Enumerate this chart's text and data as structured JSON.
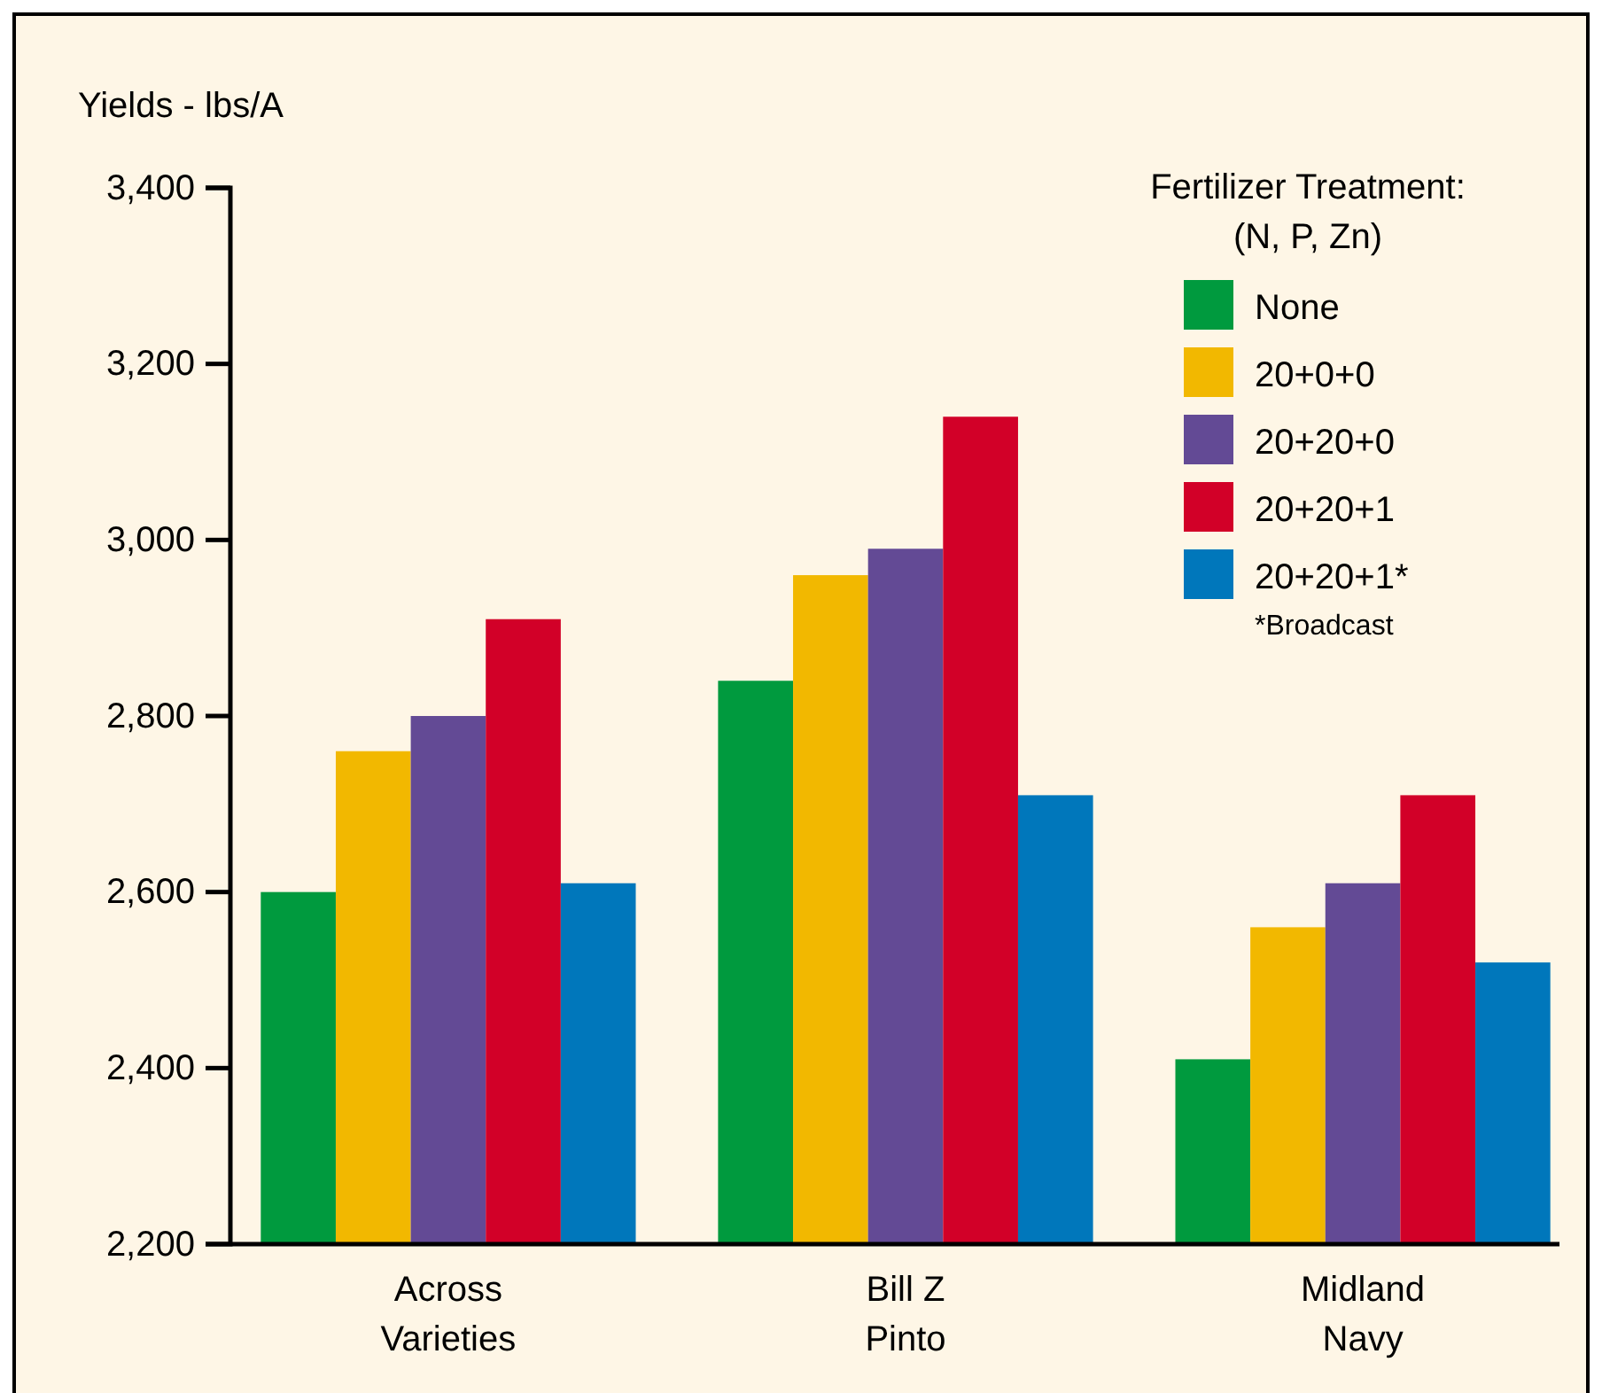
{
  "chart_data": {
    "type": "bar",
    "ylabel": "Yields - lbs/A",
    "legend_title": "Fertilizer Treatment:\n(N, P, Zn)",
    "categories": [
      "Across\nVarieties",
      "Bill Z\nPinto",
      "Midland\nNavy"
    ],
    "series": [
      {
        "name": "None",
        "color": "#009a3e",
        "values": [
          2600,
          2840,
          2410
        ]
      },
      {
        "name": "20+0+0",
        "color": "#f2b800",
        "values": [
          2760,
          2960,
          2560
        ]
      },
      {
        "name": "20+20+0",
        "color": "#634a95",
        "values": [
          2800,
          2990,
          2610
        ]
      },
      {
        "name": "20+20+1",
        "color": "#d20028",
        "values": [
          2910,
          3140,
          2710
        ]
      },
      {
        "name": "20+20+1*",
        "color": "#0077bb",
        "values": [
          2610,
          2710,
          2520
        ]
      }
    ],
    "annotations": [
      "*Broadcast"
    ],
    "ylim": [
      2200,
      3400
    ],
    "yticks": [
      {
        "value": 2200,
        "label": "2,200"
      },
      {
        "value": 2400,
        "label": "2,400"
      },
      {
        "value": 2600,
        "label": "2,600"
      },
      {
        "value": 2800,
        "label": "2,800"
      },
      {
        "value": 3000,
        "label": "3,000"
      },
      {
        "value": 3200,
        "label": "3,200"
      },
      {
        "value": 3400,
        "label": "3,400"
      }
    ],
    "grid": false,
    "legend": "top right"
  }
}
